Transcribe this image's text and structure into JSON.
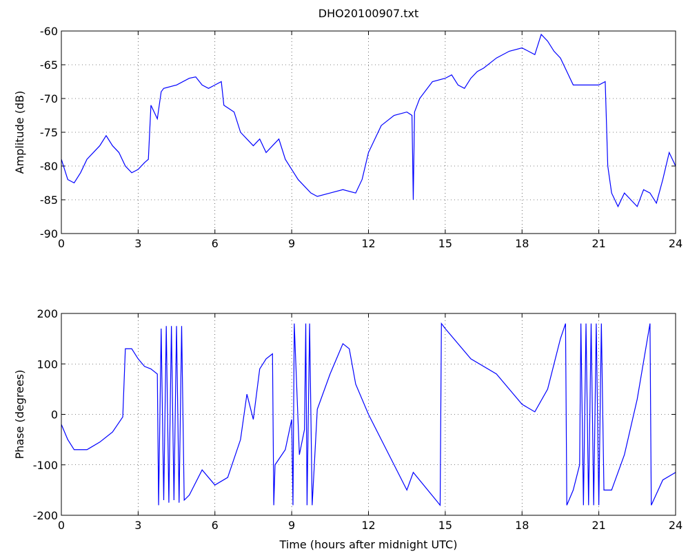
{
  "chart_data": [
    {
      "type": "line",
      "title": "DHO20100907.txt",
      "ylabel": "Amplitude (dB)",
      "xlim": [
        0,
        24
      ],
      "xticks": [
        0,
        3,
        6,
        9,
        12,
        15,
        18,
        21,
        24
      ],
      "ylim": [
        -90,
        -60
      ],
      "yticks": [
        -90,
        -85,
        -80,
        -75,
        -70,
        -65,
        -60
      ],
      "grid": true,
      "series": [
        {
          "color": "#0000ff",
          "x": [
            0,
            0.25,
            0.5,
            0.75,
            1,
            1.25,
            1.5,
            1.75,
            2,
            2.25,
            2.5,
            2.75,
            3,
            3.25,
            3.4,
            3.5,
            3.75,
            3.9,
            4,
            4.5,
            5,
            5.25,
            5.5,
            5.75,
            6,
            6.25,
            6.35,
            6.75,
            7,
            7.25,
            7.5,
            7.75,
            8,
            8.25,
            8.5,
            8.75,
            9,
            9.25,
            9.5,
            9.75,
            10,
            10.5,
            11,
            11.5,
            11.75,
            12,
            12.5,
            13,
            13.5,
            13.7,
            13.75,
            13.8,
            14,
            14.5,
            15,
            15.25,
            15.5,
            15.75,
            16,
            16.25,
            16.5,
            17,
            17.5,
            18,
            18.25,
            18.5,
            18.75,
            19,
            19.25,
            19.5,
            19.75,
            20,
            20.5,
            21,
            21.25,
            21.35,
            21.5,
            21.75,
            22,
            22.25,
            22.5,
            22.75,
            23,
            23.25,
            23.5,
            23.75,
            24
          ],
          "values": [
            -79,
            -82,
            -82.5,
            -81,
            -79,
            -78,
            -77,
            -75.5,
            -77,
            -78,
            -80,
            -81,
            -80.5,
            -79.5,
            -79,
            -71,
            -73,
            -69,
            -68.5,
            -68,
            -67,
            -66.8,
            -68,
            -68.5,
            -68,
            -67.5,
            -71,
            -72,
            -75,
            -76,
            -77,
            -76,
            -78,
            -77,
            -76,
            -79,
            -80.5,
            -82,
            -83,
            -84,
            -84.5,
            -84,
            -83.5,
            -84,
            -82,
            -78,
            -74,
            -72.5,
            -72,
            -72.5,
            -85,
            -72,
            -70,
            -67.5,
            -67,
            -66.5,
            -68,
            -68.5,
            -67,
            -66,
            -65.5,
            -64,
            -63,
            -62.5,
            -63,
            -63.5,
            -60.5,
            -61.5,
            -63,
            -64,
            -66,
            -68,
            -68,
            -68,
            -67.5,
            -80,
            -84,
            -86,
            -84,
            -85,
            -86,
            -83.5,
            -84,
            -85.5,
            -82,
            -78,
            -80
          ]
        }
      ]
    },
    {
      "type": "line",
      "xlabel": "Time (hours after midnight UTC)",
      "ylabel": "Phase (degrees)",
      "xlim": [
        0,
        24
      ],
      "xticks": [
        0,
        3,
        6,
        9,
        12,
        15,
        18,
        21,
        24
      ],
      "ylim": [
        -200,
        200
      ],
      "yticks": [
        -200,
        -100,
        0,
        100,
        200
      ],
      "grid": true,
      "series": [
        {
          "color": "#0000ff",
          "x": [
            0,
            0.25,
            0.5,
            1,
            1.5,
            2,
            2.4,
            2.5,
            2.75,
            3,
            3.25,
            3.5,
            3.75,
            3.8,
            3.9,
            4,
            4.1,
            4.2,
            4.3,
            4.4,
            4.5,
            4.6,
            4.7,
            4.8,
            5,
            5.5,
            6,
            6.5,
            7,
            7.25,
            7.5,
            7.75,
            8,
            8.25,
            8.3,
            8.35,
            8.75,
            9,
            9.05,
            9.1,
            9.3,
            9.5,
            9.55,
            9.6,
            9.7,
            9.8,
            10,
            10.5,
            11,
            11.25,
            11.5,
            12,
            12.5,
            13,
            13.5,
            13.75,
            14.8,
            14.85,
            15,
            16,
            17,
            17.5,
            18,
            18.5,
            19,
            19.5,
            19.7,
            19.75,
            20,
            20.25,
            20.3,
            20.4,
            20.5,
            20.6,
            20.7,
            20.8,
            20.9,
            21,
            21.1,
            21.2,
            21.5,
            22,
            22.5,
            23,
            23.05,
            23.5,
            24
          ],
          "values": [
            -20,
            -50,
            -70,
            -70,
            -55,
            -35,
            -5,
            130,
            130,
            110,
            95,
            90,
            80,
            -180,
            170,
            -170,
            175,
            -175,
            175,
            -170,
            175,
            -175,
            175,
            -170,
            -160,
            -110,
            -140,
            -125,
            -50,
            40,
            -10,
            90,
            110,
            120,
            -180,
            -100,
            -70,
            -10,
            -180,
            180,
            -80,
            -30,
            180,
            -180,
            180,
            -180,
            10,
            80,
            140,
            130,
            60,
            0,
            -50,
            -100,
            -150,
            -115,
            -180,
            180,
            170,
            110,
            80,
            50,
            20,
            5,
            50,
            150,
            180,
            -180,
            -150,
            -100,
            180,
            -180,
            180,
            -180,
            180,
            -180,
            180,
            -180,
            180,
            -150,
            -150,
            -80,
            30,
            180,
            -180,
            -130,
            -115
          ]
        }
      ]
    }
  ]
}
